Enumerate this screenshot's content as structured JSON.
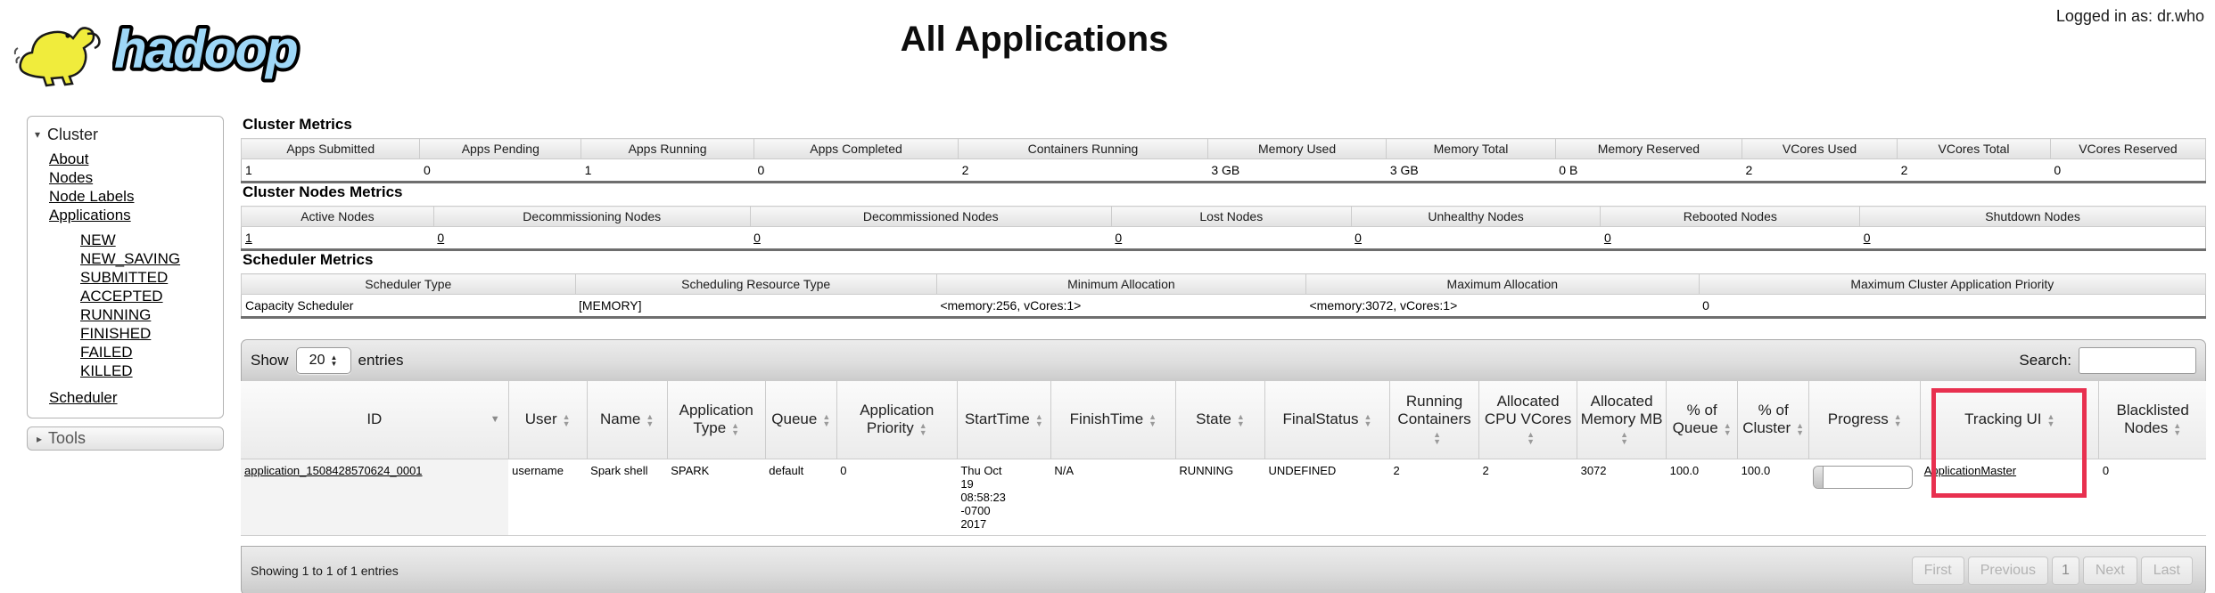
{
  "page": {
    "logo_text": "hadoop",
    "logged_in": "Logged in as: dr.who",
    "title": "All Applications"
  },
  "sidebar": {
    "cluster": {
      "label": "Cluster",
      "items": [
        "About",
        "Nodes",
        "Node Labels",
        "Applications"
      ],
      "app_states": [
        "NEW",
        "NEW_SAVING",
        "SUBMITTED",
        "ACCEPTED",
        "RUNNING",
        "FINISHED",
        "FAILED",
        "KILLED"
      ],
      "scheduler": "Scheduler"
    },
    "tools": {
      "label": "Tools"
    }
  },
  "cluster_metrics": {
    "heading": "Cluster Metrics",
    "columns": [
      "Apps Submitted",
      "Apps Pending",
      "Apps Running",
      "Apps Completed",
      "Containers Running",
      "Memory Used",
      "Memory Total",
      "Memory Reserved",
      "VCores Used",
      "VCores Total",
      "VCores Reserved"
    ],
    "values": [
      "1",
      "0",
      "1",
      "0",
      "2",
      "3 GB",
      "3 GB",
      "0 B",
      "2",
      "2",
      "0"
    ]
  },
  "cluster_nodes_metrics": {
    "heading": "Cluster Nodes Metrics",
    "columns": [
      "Active Nodes",
      "Decommissioning Nodes",
      "Decommissioned Nodes",
      "Lost Nodes",
      "Unhealthy Nodes",
      "Rebooted Nodes",
      "Shutdown Nodes"
    ],
    "values": [
      "1",
      "0",
      "0",
      "0",
      "0",
      "0",
      "0"
    ]
  },
  "scheduler_metrics": {
    "heading": "Scheduler Metrics",
    "columns": [
      "Scheduler Type",
      "Scheduling Resource Type",
      "Minimum Allocation",
      "Maximum Allocation",
      "Maximum Cluster Application Priority"
    ],
    "values": [
      "Capacity Scheduler",
      "[MEMORY]",
      "<memory:256, vCores:1>",
      "<memory:3072, vCores:1>",
      "0"
    ]
  },
  "apps_table": {
    "show_label": "Show",
    "page_size": "20",
    "entries_label": "entries",
    "search_label": "Search:",
    "columns": [
      "ID",
      "User",
      "Name",
      "Application Type",
      "Queue",
      "Application Priority",
      "StartTime",
      "FinishTime",
      "State",
      "FinalStatus",
      "Running Containers",
      "Allocated CPU VCores",
      "Allocated Memory MB",
      "% of Queue",
      "% of Cluster",
      "Progress",
      "Tracking UI",
      "Blacklisted Nodes"
    ],
    "row": {
      "id": "application_1508428570624_0001",
      "user": "username",
      "name": "Spark shell",
      "application_type": "SPARK",
      "queue": "default",
      "application_priority": "0",
      "start_time": "Thu Oct 19 08:58:23 -0700 2017",
      "finish_time": "N/A",
      "state": "RUNNING",
      "final_status": "UNDEFINED",
      "running_containers": "2",
      "allocated_cpu_vcores": "2",
      "allocated_memory_mb": "3072",
      "pct_of_queue": "100.0",
      "pct_of_cluster": "100.0",
      "progress_percent": 10,
      "tracking_ui": "ApplicationMaster",
      "blacklisted_nodes": "0"
    },
    "footer_info": "Showing 1 to 1 of 1 entries",
    "pagination": [
      "First",
      "Previous",
      "1",
      "Next",
      "Last"
    ]
  },
  "annotation": {
    "highlight_color": "#e8304f"
  }
}
